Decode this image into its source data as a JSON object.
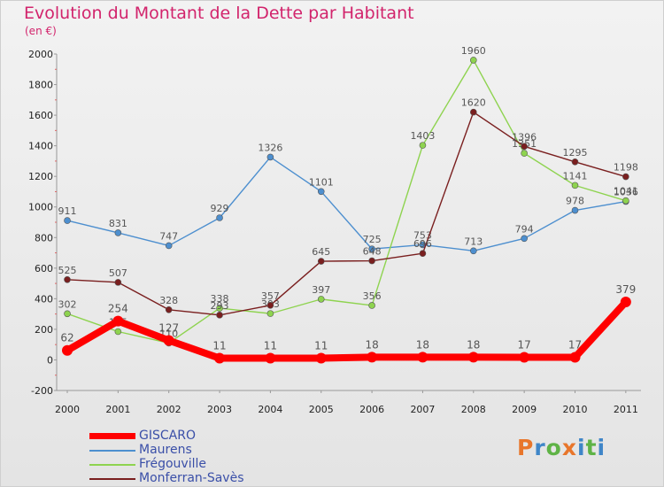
{
  "title": "Evolution du Montant de la Dette par Habitant",
  "unit_label": "(en €)",
  "logo": {
    "letters": [
      "P",
      "r",
      "o",
      "x",
      "i",
      "t",
      "i"
    ],
    "colors": [
      "#e8762b",
      "#3f86c8",
      "#5fb346",
      "#e8762b",
      "#3f86c8",
      "#5fb346",
      "#3f86c8"
    ]
  },
  "chart_data": {
    "type": "line",
    "title": "Evolution du Montant de la Dette par Habitant",
    "ylabel": "(en €)",
    "x": [
      "2000",
      "2001",
      "2002",
      "2003",
      "2004",
      "2005",
      "2006",
      "2007",
      "2008",
      "2009",
      "2010",
      "2011"
    ],
    "ylim": [
      -200,
      2000
    ],
    "yticks": [
      "-200",
      "0",
      "200",
      "400",
      "600",
      "800",
      "1000",
      "1200",
      "1400",
      "1600",
      "1800",
      "2000"
    ],
    "grid": false,
    "legend_position": "bottom",
    "series": [
      {
        "name": "GISCARO",
        "color": "#ff0000",
        "values": [
          62,
          254,
          127,
          11,
          11,
          11,
          18,
          18,
          18,
          17,
          17,
          379
        ],
        "labels": [
          "62",
          "254",
          "127",
          "11",
          "11",
          "11",
          "18",
          "18",
          "18",
          "17",
          "17",
          "379"
        ]
      },
      {
        "name": "Maurens",
        "color": "#4d8fcf",
        "values": [
          911,
          831,
          747,
          929,
          1326,
          1101,
          725,
          753,
          713,
          794,
          978,
          1036
        ],
        "labels": [
          "911",
          "831",
          "747",
          "929",
          "1326",
          "1101",
          "725",
          "753",
          "713",
          "794",
          "978",
          "1036"
        ]
      },
      {
        "name": "Frégouville",
        "color": "#8ed34f",
        "values": [
          302,
          185,
          110,
          338,
          303,
          397,
          356,
          1403,
          1960,
          1351,
          1141,
          1041
        ],
        "labels": [
          "302",
          "185",
          "110",
          "338",
          "303",
          "397",
          "356",
          "1403",
          "1960",
          "1351",
          "1141",
          "1041"
        ]
      },
      {
        "name": "Monferran-Savès",
        "color": "#7a1f1f",
        "values": [
          525,
          507,
          328,
          293,
          357,
          645,
          648,
          696,
          1620,
          1396,
          1295,
          1198
        ],
        "labels": [
          "525",
          "507",
          "328",
          "293",
          "357",
          "645",
          "648",
          "696",
          "1620",
          "1396",
          "1295",
          "1198"
        ]
      }
    ]
  }
}
